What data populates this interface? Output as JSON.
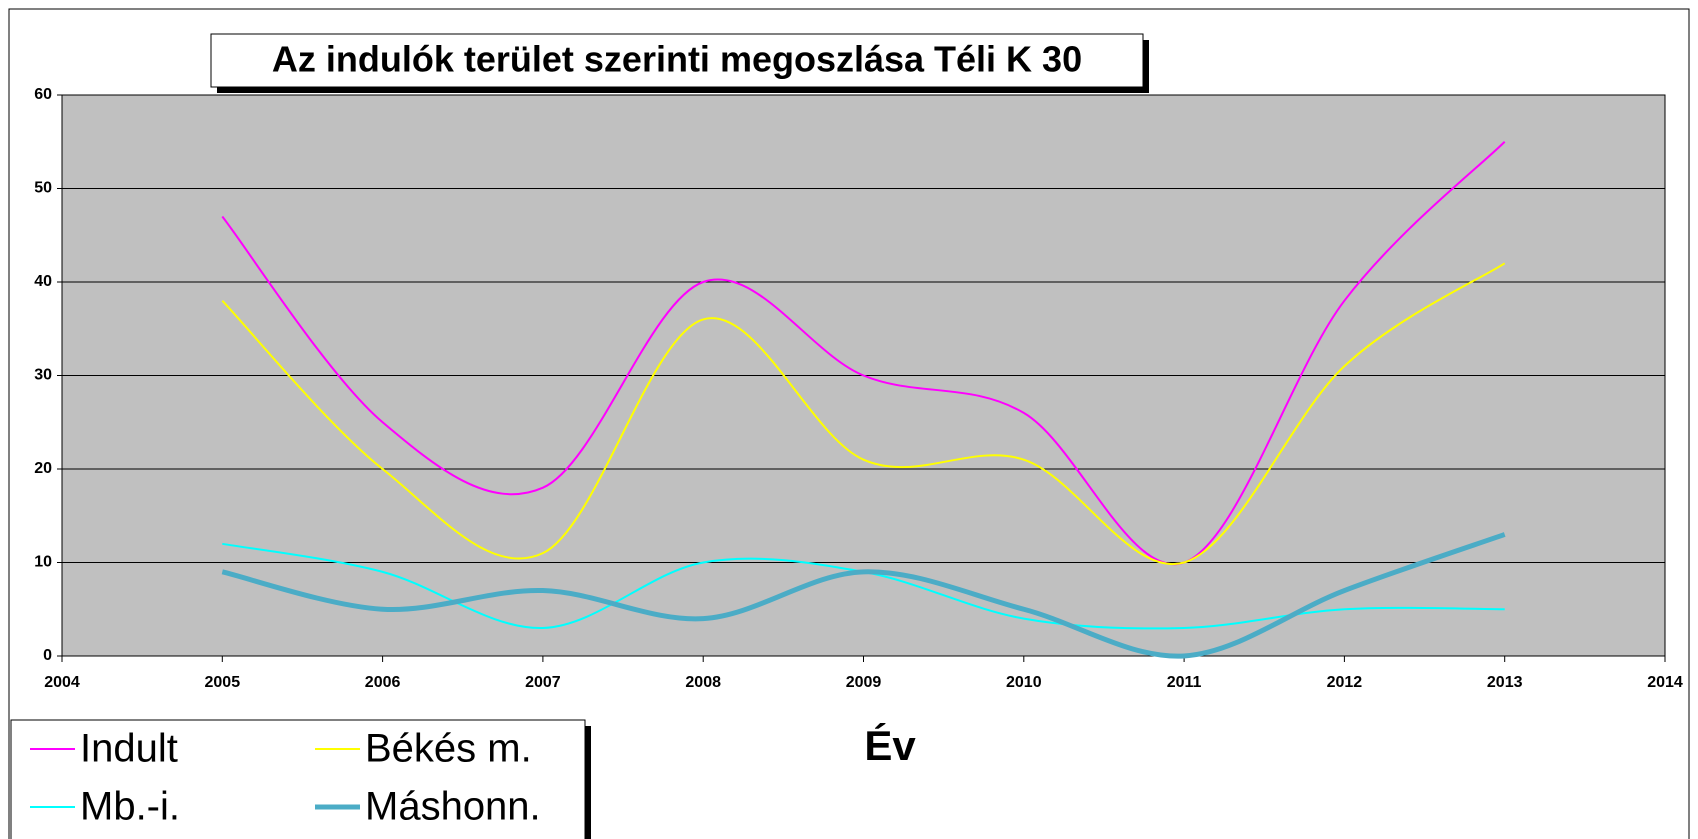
{
  "chart_data": {
    "type": "line",
    "title": "Az indulók terület szerinti megoszlása Téli K 30",
    "x_label": "Év",
    "x": [
      2005,
      2006,
      2007,
      2008,
      2009,
      2010,
      2011,
      2012,
      2013
    ],
    "series": [
      {
        "name": "Indult",
        "color": "#ff00ff",
        "line_width": 2,
        "values": [
          47,
          25,
          18,
          40,
          30,
          26,
          10,
          38,
          55
        ]
      },
      {
        "name": "Békés m.",
        "color": "#ffff00",
        "line_width": 2,
        "values": [
          38,
          20,
          11,
          36,
          21,
          21,
          10,
          31,
          42
        ]
      },
      {
        "name": "Mb.-i.",
        "color": "#00ffff",
        "line_width": 2,
        "values": [
          12,
          9,
          3,
          10,
          9,
          4,
          3,
          5,
          5
        ]
      },
      {
        "name": "Máshonn.",
        "color": "#4bacc6",
        "line_width": 5,
        "values": [
          9,
          5,
          7,
          4,
          9,
          5,
          0,
          7,
          13
        ]
      }
    ],
    "xlim": [
      2004,
      2014
    ],
    "xticks": [
      2004,
      2005,
      2006,
      2007,
      2008,
      2009,
      2010,
      2011,
      2012,
      2013,
      2014
    ],
    "ylim": [
      0,
      60
    ],
    "yticks": [
      0,
      10,
      20,
      30,
      40,
      50,
      60
    ],
    "grid": true,
    "smooth": true,
    "plot_background": "#c0c0c0"
  }
}
